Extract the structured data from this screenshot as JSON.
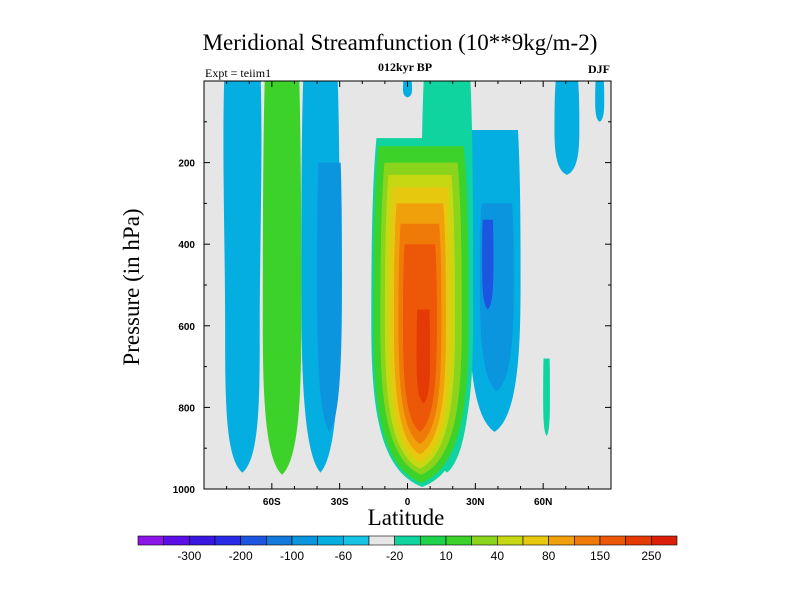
{
  "chart_data": {
    "type": "heatmap",
    "title": "Meridional Streamfunction (10**9kg/m-2)",
    "left_label": "Expt = teiim1",
    "center_label": "012kyr BP",
    "right_label": "DJF",
    "xlabel": "Latitude",
    "ylabel": "Pressure (in hPa)",
    "xlim": [
      -90,
      90
    ],
    "ylim": [
      1000,
      0
    ],
    "y_reversed": true,
    "x_ticks": [
      {
        "value": -60,
        "label": "60S"
      },
      {
        "value": -30,
        "label": "30S"
      },
      {
        "value": 0,
        "label": "0"
      },
      {
        "value": 30,
        "label": "30N"
      },
      {
        "value": 60,
        "label": "60N"
      }
    ],
    "y_ticks": [
      200,
      400,
      600,
      800,
      1000
    ],
    "colorbar": {
      "colors": [
        "#8c15e8",
        "#5c0ee6",
        "#3a17e0",
        "#2a2be8",
        "#1c55e0",
        "#1379da",
        "#0c95df",
        "#04aee0",
        "#18c4e4",
        "#e6e6e6",
        "#0fd4a0",
        "#1ed24c",
        "#3cd22a",
        "#8ad41c",
        "#c6d812",
        "#e6c80e",
        "#f0a00a",
        "#f07a08",
        "#ec5808",
        "#e43a06",
        "#dc1f08"
      ],
      "labels": [
        "-300",
        "-200",
        "-100",
        "-60",
        "-20",
        "10",
        "40",
        "80",
        "150",
        "250"
      ],
      "label_after_box": [
        1,
        3,
        5,
        7,
        9,
        11,
        13,
        15,
        17,
        19
      ]
    },
    "regions": [
      {
        "level": -20,
        "color": "#04aee0",
        "x0": -82,
        "x1": -64,
        "p_top": 0,
        "p_bot": 960,
        "p_mid": 600,
        "w_mid": 0.85
      },
      {
        "level": -20,
        "color": "#04aee0",
        "x0": -47,
        "x1": -30,
        "p_top": 0,
        "p_bot": 960,
        "p_mid": 500,
        "w_mid": 1.0
      },
      {
        "level": 40,
        "color": "#3cd22a",
        "x0": -64,
        "x1": -47,
        "p_top": 0,
        "p_bot": 965,
        "p_mid": 600,
        "w_mid": 1.0
      },
      {
        "level": -60,
        "color": "#0c95df",
        "x0": -40,
        "x1": -29,
        "p_top": 200,
        "p_bot": 860,
        "p_mid": 500,
        "w_mid": 1.0
      },
      {
        "level": -20,
        "color": "#04aee0",
        "x0": 27,
        "x1": 50,
        "p_top": 120,
        "p_bot": 860,
        "p_mid": 500,
        "w_mid": 1.0
      },
      {
        "level": -60,
        "color": "#0c95df",
        "x0": 32,
        "x1": 47,
        "p_top": 300,
        "p_bot": 760,
        "p_mid": 500,
        "w_mid": 1.0
      },
      {
        "level": -100,
        "color": "#1c55e0",
        "x0": 33,
        "x1": 38,
        "p_top": 340,
        "p_bot": 560,
        "p_mid": 450,
        "w_mid": 1.0
      },
      {
        "level": -20,
        "color": "#04aee0",
        "x0": 65,
        "x1": 76,
        "p_top": 0,
        "p_bot": 230,
        "p_mid": 120,
        "w_mid": 1.0
      },
      {
        "level": -20,
        "color": "#04aee0",
        "x0": 83,
        "x1": 87,
        "p_top": 0,
        "p_bot": 100,
        "p_mid": 50,
        "w_mid": 1.0
      },
      {
        "level": -20,
        "color": "#04aee0",
        "x0": -2,
        "x1": 2,
        "p_top": 0,
        "p_bot": 40,
        "p_mid": 20,
        "w_mid": 1.0
      },
      {
        "level": 10,
        "color": "#0fd4a0",
        "x0": 60,
        "x1": 63,
        "p_top": 680,
        "p_bot": 870,
        "p_mid": 780,
        "w_mid": 1.0
      },
      {
        "level": 10,
        "color": "#0fd4a0",
        "x0": 6,
        "x1": 29,
        "p_top": 0,
        "p_bot": 960,
        "p_mid": 500,
        "w_mid": 1.0
      },
      {
        "level": 10,
        "color": "#0fd4a0",
        "x0": -16,
        "x1": 29,
        "p_top": 140,
        "p_bot": 995,
        "p_mid": 600,
        "w_mid": 1.0
      },
      {
        "level": 40,
        "color": "#3cd22a",
        "x0": -15,
        "x1": 27,
        "p_top": 160,
        "p_bot": 985,
        "p_mid": 600,
        "w_mid": 1.0
      },
      {
        "level": 60,
        "color": "#8ad41c",
        "x0": -12,
        "x1": 24,
        "p_top": 200,
        "p_bot": 965,
        "p_mid": 600,
        "w_mid": 1.0
      },
      {
        "level": 80,
        "color": "#c6d812",
        "x0": -10,
        "x1": 21,
        "p_top": 230,
        "p_bot": 950,
        "p_mid": 600,
        "w_mid": 1.0
      },
      {
        "level": 100,
        "color": "#e6c80e",
        "x0": -8,
        "x1": 19,
        "p_top": 260,
        "p_bot": 935,
        "p_mid": 600,
        "w_mid": 1.0
      },
      {
        "level": 125,
        "color": "#f0a00a",
        "x0": -6,
        "x1": 17,
        "p_top": 300,
        "p_bot": 915,
        "p_mid": 600,
        "w_mid": 1.0
      },
      {
        "level": 150,
        "color": "#f07a08",
        "x0": -4,
        "x1": 15,
        "p_top": 350,
        "p_bot": 890,
        "p_mid": 600,
        "w_mid": 1.0
      },
      {
        "level": 200,
        "color": "#ec5808",
        "x0": -2,
        "x1": 13,
        "p_top": 400,
        "p_bot": 860,
        "p_mid": 600,
        "w_mid": 1.0
      },
      {
        "level": 250,
        "color": "#e43a06",
        "x0": 4,
        "x1": 10,
        "p_top": 560,
        "p_bot": 790,
        "p_mid": 680,
        "w_mid": 1.0
      }
    ]
  }
}
